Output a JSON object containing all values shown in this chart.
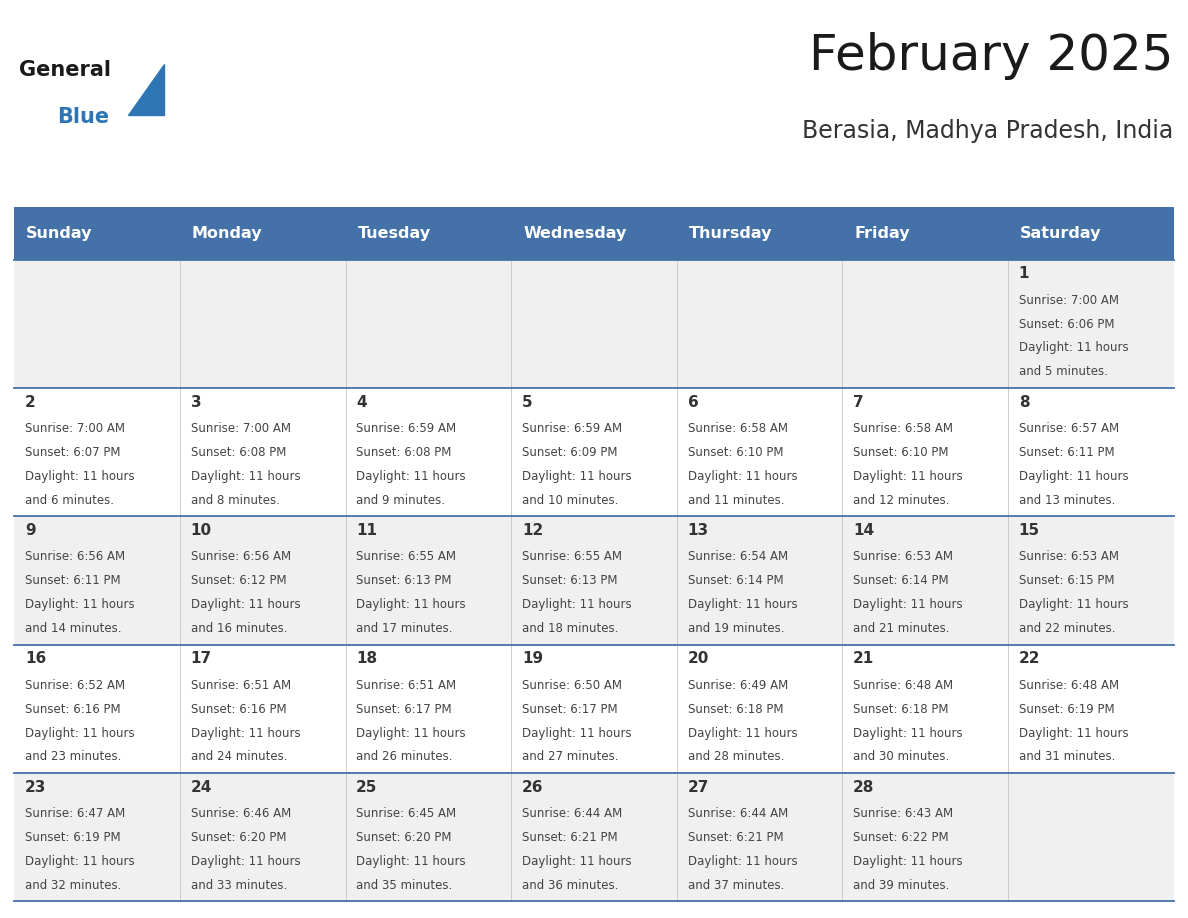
{
  "title": "February 2025",
  "subtitle": "Berasia, Madhya Pradesh, India",
  "header_bg": "#4472a8",
  "header_text": "#ffffff",
  "row_bg_odd": "#f0f0f0",
  "row_bg_even": "#ffffff",
  "border_color": "#4472a8",
  "day_headers": [
    "Sunday",
    "Monday",
    "Tuesday",
    "Wednesday",
    "Thursday",
    "Friday",
    "Saturday"
  ],
  "title_color": "#1a1a1a",
  "subtitle_color": "#333333",
  "day_number_color": "#333333",
  "info_color": "#444444",
  "logo_general_color": "#1a1a1a",
  "logo_blue_color": "#2e75b6",
  "calendar": [
    [
      null,
      null,
      null,
      null,
      null,
      null,
      {
        "day": "1",
        "sunrise": "7:00 AM",
        "sunset": "6:06 PM",
        "daylight": "11 hours",
        "daylight2": "and 5 minutes."
      }
    ],
    [
      {
        "day": "2",
        "sunrise": "7:00 AM",
        "sunset": "6:07 PM",
        "daylight": "11 hours",
        "daylight2": "and 6 minutes."
      },
      {
        "day": "3",
        "sunrise": "7:00 AM",
        "sunset": "6:08 PM",
        "daylight": "11 hours",
        "daylight2": "and 8 minutes."
      },
      {
        "day": "4",
        "sunrise": "6:59 AM",
        "sunset": "6:08 PM",
        "daylight": "11 hours",
        "daylight2": "and 9 minutes."
      },
      {
        "day": "5",
        "sunrise": "6:59 AM",
        "sunset": "6:09 PM",
        "daylight": "11 hours",
        "daylight2": "and 10 minutes."
      },
      {
        "day": "6",
        "sunrise": "6:58 AM",
        "sunset": "6:10 PM",
        "daylight": "11 hours",
        "daylight2": "and 11 minutes."
      },
      {
        "day": "7",
        "sunrise": "6:58 AM",
        "sunset": "6:10 PM",
        "daylight": "11 hours",
        "daylight2": "and 12 minutes."
      },
      {
        "day": "8",
        "sunrise": "6:57 AM",
        "sunset": "6:11 PM",
        "daylight": "11 hours",
        "daylight2": "and 13 minutes."
      }
    ],
    [
      {
        "day": "9",
        "sunrise": "6:56 AM",
        "sunset": "6:11 PM",
        "daylight": "11 hours",
        "daylight2": "and 14 minutes."
      },
      {
        "day": "10",
        "sunrise": "6:56 AM",
        "sunset": "6:12 PM",
        "daylight": "11 hours",
        "daylight2": "and 16 minutes."
      },
      {
        "day": "11",
        "sunrise": "6:55 AM",
        "sunset": "6:13 PM",
        "daylight": "11 hours",
        "daylight2": "and 17 minutes."
      },
      {
        "day": "12",
        "sunrise": "6:55 AM",
        "sunset": "6:13 PM",
        "daylight": "11 hours",
        "daylight2": "and 18 minutes."
      },
      {
        "day": "13",
        "sunrise": "6:54 AM",
        "sunset": "6:14 PM",
        "daylight": "11 hours",
        "daylight2": "and 19 minutes."
      },
      {
        "day": "14",
        "sunrise": "6:53 AM",
        "sunset": "6:14 PM",
        "daylight": "11 hours",
        "daylight2": "and 21 minutes."
      },
      {
        "day": "15",
        "sunrise": "6:53 AM",
        "sunset": "6:15 PM",
        "daylight": "11 hours",
        "daylight2": "and 22 minutes."
      }
    ],
    [
      {
        "day": "16",
        "sunrise": "6:52 AM",
        "sunset": "6:16 PM",
        "daylight": "11 hours",
        "daylight2": "and 23 minutes."
      },
      {
        "day": "17",
        "sunrise": "6:51 AM",
        "sunset": "6:16 PM",
        "daylight": "11 hours",
        "daylight2": "and 24 minutes."
      },
      {
        "day": "18",
        "sunrise": "6:51 AM",
        "sunset": "6:17 PM",
        "daylight": "11 hours",
        "daylight2": "and 26 minutes."
      },
      {
        "day": "19",
        "sunrise": "6:50 AM",
        "sunset": "6:17 PM",
        "daylight": "11 hours",
        "daylight2": "and 27 minutes."
      },
      {
        "day": "20",
        "sunrise": "6:49 AM",
        "sunset": "6:18 PM",
        "daylight": "11 hours",
        "daylight2": "and 28 minutes."
      },
      {
        "day": "21",
        "sunrise": "6:48 AM",
        "sunset": "6:18 PM",
        "daylight": "11 hours",
        "daylight2": "and 30 minutes."
      },
      {
        "day": "22",
        "sunrise": "6:48 AM",
        "sunset": "6:19 PM",
        "daylight": "11 hours",
        "daylight2": "and 31 minutes."
      }
    ],
    [
      {
        "day": "23",
        "sunrise": "6:47 AM",
        "sunset": "6:19 PM",
        "daylight": "11 hours",
        "daylight2": "and 32 minutes."
      },
      {
        "day": "24",
        "sunrise": "6:46 AM",
        "sunset": "6:20 PM",
        "daylight": "11 hours",
        "daylight2": "and 33 minutes."
      },
      {
        "day": "25",
        "sunrise": "6:45 AM",
        "sunset": "6:20 PM",
        "daylight": "11 hours",
        "daylight2": "and 35 minutes."
      },
      {
        "day": "26",
        "sunrise": "6:44 AM",
        "sunset": "6:21 PM",
        "daylight": "11 hours",
        "daylight2": "and 36 minutes."
      },
      {
        "day": "27",
        "sunrise": "6:44 AM",
        "sunset": "6:21 PM",
        "daylight": "11 hours",
        "daylight2": "and 37 minutes."
      },
      {
        "day": "28",
        "sunrise": "6:43 AM",
        "sunset": "6:22 PM",
        "daylight": "11 hours",
        "daylight2": "and 39 minutes."
      },
      null
    ]
  ]
}
